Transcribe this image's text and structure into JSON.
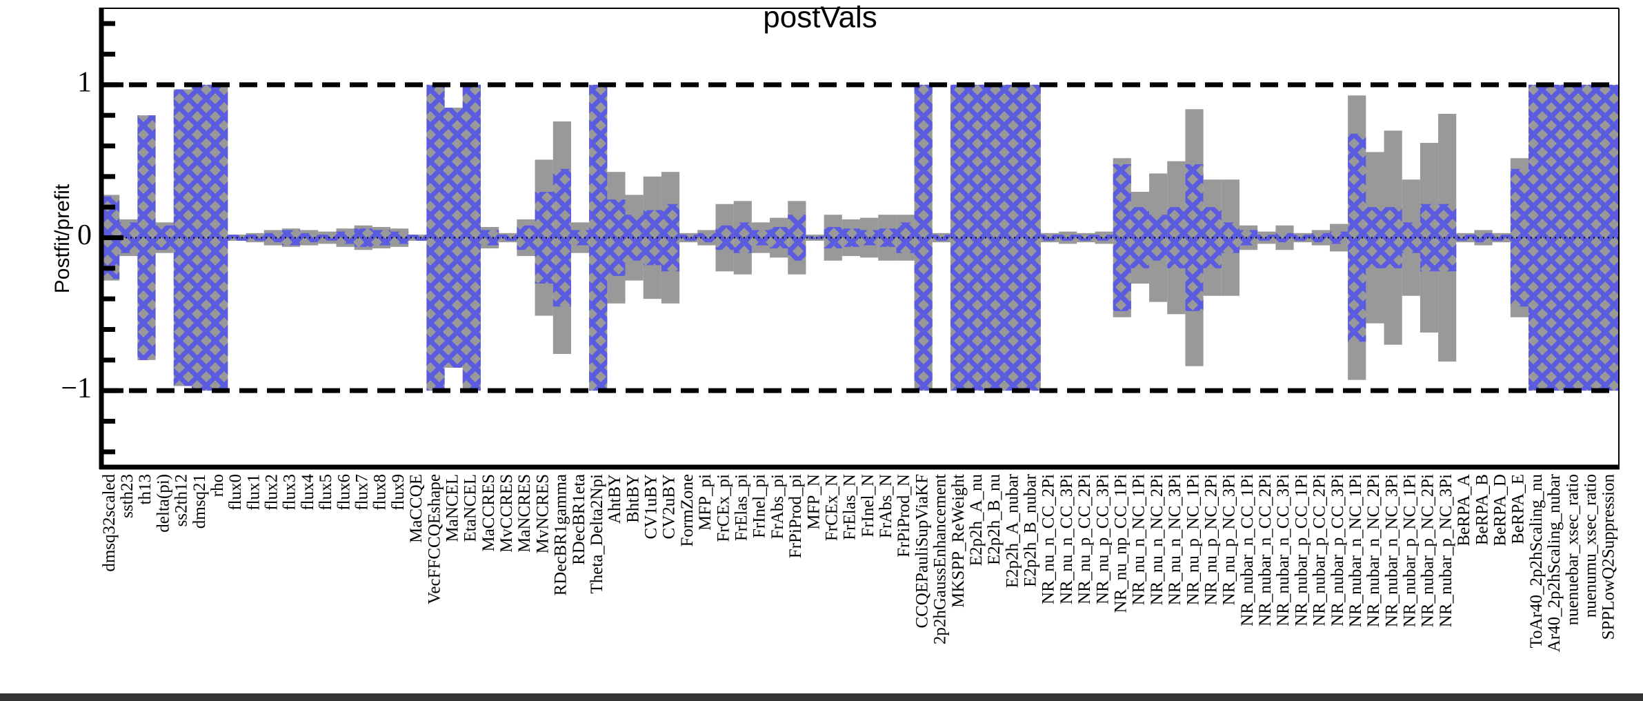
{
  "chart_data": {
    "type": "band",
    "title": "postVals",
    "y_label": "Postfit/prefit",
    "categories": [
      "dmsq32scaled",
      "ssth23",
      "th13",
      "delta(pi)",
      "ss2th12",
      "dmsq21",
      "rho",
      "flux0",
      "flux1",
      "flux2",
      "flux3",
      "flux4",
      "flux5",
      "flux6",
      "flux7",
      "flux8",
      "flux9",
      "MaCCQE",
      "VecFFCCQEshape",
      "MaNCEL",
      "EtaNCEL",
      "MaCCRES",
      "MvCCRES",
      "MaNCRES",
      "MvNCRES",
      "RDecBR1gamma",
      "RDecBR1eta",
      "Theta_Delta2Npi",
      "AhtBY",
      "BhtBY",
      "CV1uBY",
      "CV2uBY",
      "FormZone",
      "MFP_pi",
      "FrCEx_pi",
      "FrElas_pi",
      "FrInel_pi",
      "FrAbs_pi",
      "FrPiProd_pi",
      "MFP_N",
      "FrCEx_N",
      "FrElas_N",
      "FrInel_N",
      "FrAbs_N",
      "FrPiProd_N",
      "CCQEPauliSupViaKF",
      "2p2hGaussEnhancement",
      "MKSPP_ReWeight",
      "E2p2h_A_nu",
      "E2p2h_B_nu",
      "E2p2h_A_nubar",
      "E2p2h_B_nubar",
      "NR_nu_n_CC_2Pi",
      "NR_nu_n_CC_3Pi",
      "NR_nu_p_CC_2Pi",
      "NR_nu_p_CC_3Pi",
      "NR_nu_np_CC_1Pi",
      "NR_nu_n_NC_1Pi",
      "NR_nu_n_NC_2Pi",
      "NR_nu_n_NC_3Pi",
      "NR_nu_p_NC_1Pi",
      "NR_nu_p_NC_2Pi",
      "NR_nu_p_NC_3Pi",
      "NR_nubar_n_CC_1Pi",
      "NR_nubar_n_CC_2Pi",
      "NR_nubar_n_CC_3Pi",
      "NR_nubar_p_CC_1Pi",
      "NR_nubar_p_CC_2Pi",
      "NR_nubar_p_CC_3Pi",
      "NR_nubar_n_NC_1Pi",
      "NR_nubar_n_NC_2Pi",
      "NR_nubar_n_NC_3Pi",
      "NR_nubar_p_NC_1Pi",
      "NR_nubar_p_NC_2Pi",
      "NR_nubar_p_NC_3Pi",
      "BeRPA_A",
      "BeRPA_B",
      "BeRPA_D",
      "BeRPA_E",
      "ToAr40_2p2hScaling_nu",
      "Ar40_2p2hScaling_nubar",
      "nuenuebar_xsec_ratio",
      "nuenumu_xsec_ratio",
      "SPPLowQ2Suppression"
    ],
    "series": [
      {
        "color": "#999999",
        "fill": "solid",
        "values": [
          0.28,
          0.12,
          0.8,
          0.1,
          0.97,
          1,
          1,
          0.02,
          0.03,
          0.05,
          0.06,
          0.05,
          0.04,
          0.06,
          0.08,
          0.07,
          0.06,
          0.02,
          1,
          0.85,
          1,
          0.07,
          0.03,
          0.12,
          0.51,
          0.76,
          0.1,
          1,
          0.43,
          0.28,
          0.4,
          0.43,
          0.03,
          0.05,
          0.22,
          0.24,
          0.1,
          0.13,
          0.24,
          0.02,
          0.15,
          0.12,
          0.13,
          0.15,
          0.15,
          1,
          0.03,
          1,
          1,
          1,
          1,
          1,
          0.03,
          0.04,
          0.03,
          0.04,
          0.52,
          0.3,
          0.42,
          0.5,
          0.84,
          0.38,
          0.38,
          0.08,
          0.04,
          0.08,
          0.03,
          0.05,
          0.09,
          0.93,
          0.56,
          0.7,
          0.38,
          0.62,
          0.81,
          0.03,
          0.05,
          0.03,
          0.52,
          1,
          1,
          1,
          1,
          1
        ]
      },
      {
        "color": "#5b5be0",
        "fill": "cross-hatch",
        "values": [
          0.27,
          0.1,
          0.8,
          0.08,
          0.97,
          1,
          1,
          0.02,
          0.02,
          0.03,
          0.05,
          0.03,
          0.02,
          0.04,
          0.06,
          0.05,
          0.04,
          0.02,
          1,
          0.85,
          1,
          0.05,
          0.02,
          0.08,
          0.3,
          0.45,
          0.05,
          1,
          0.25,
          0.15,
          0.18,
          0.22,
          0.02,
          0.03,
          0.08,
          0.1,
          0.05,
          0.07,
          0.15,
          0.01,
          0.07,
          0.06,
          0.05,
          0.06,
          0.1,
          1,
          0.02,
          1,
          1,
          1,
          1,
          1,
          0.02,
          0.02,
          0.02,
          0.02,
          0.48,
          0.2,
          0.15,
          0.2,
          0.48,
          0.2,
          0.1,
          0.05,
          0.02,
          0.03,
          0.02,
          0.03,
          0.04,
          0.68,
          0.2,
          0.2,
          0.1,
          0.22,
          0.22,
          0.02,
          0.03,
          0.02,
          0.45,
          1,
          1,
          1,
          1,
          1
        ]
      }
    ],
    "ylim": [
      -1.5,
      1.5
    ],
    "yticks": [
      {
        "value": -1,
        "label": "−1"
      },
      0,
      1
    ],
    "yminorticks": [
      -1.4,
      -1.2,
      -0.8,
      -0.6,
      -0.4,
      -0.2,
      0.2,
      0.4,
      0.6,
      0.8,
      1.2,
      1.4
    ],
    "reference_lines": [
      {
        "y": -1,
        "style": "dashed"
      },
      {
        "y": 0,
        "style": "dotted"
      },
      {
        "y": 1,
        "style": "dashed"
      }
    ]
  }
}
